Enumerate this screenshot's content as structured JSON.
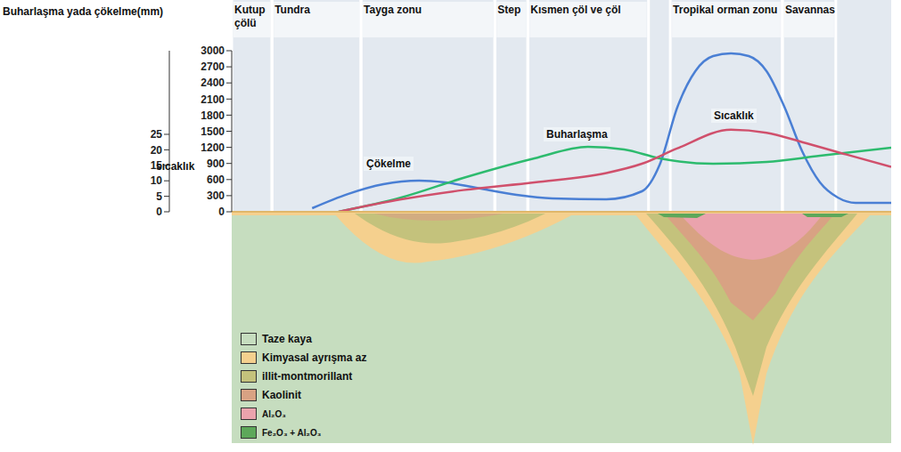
{
  "chart_data": {
    "type": "line",
    "tick_labels": "y",
    "y_label": "Buharlaşma yada çökelme(mm)",
    "y2_label": "sıcaklık",
    "xlim": [
      0,
      100
    ],
    "ylim": [
      0,
      3000
    ],
    "yticks": [
      0,
      300,
      600,
      900,
      1200,
      1500,
      1800,
      2100,
      2400,
      2700,
      3000
    ],
    "y2lim": [
      0,
      52
    ],
    "y2ticks": [
      0,
      5,
      10,
      15,
      20,
      25
    ],
    "zones": [
      {
        "name": "Kutup çölü",
        "start": 0,
        "end": 6.1
      },
      {
        "name": "Tundra",
        "start": 6.1,
        "end": 19.6
      },
      {
        "name": "Tayga zonu",
        "start": 19.6,
        "end": 39.9
      },
      {
        "name": "Step",
        "start": 39.9,
        "end": 44.9
      },
      {
        "name": "Kısmen çöl ve çöl",
        "start": 44.9,
        "end": 63.2
      },
      {
        "name": "Tropikal orman zonu",
        "start": 66.5,
        "end": 83.5
      },
      {
        "name": "Savannas",
        "start": 83.5,
        "end": 91.6
      }
    ],
    "series": [
      {
        "name": "Çökelme",
        "color": "#4a7fd4",
        "x": [
          12.2,
          17.6,
          23,
          28.4,
          32.4,
          37.8,
          43.2,
          48.6,
          56.8,
          62.2,
          64.9,
          67.6,
          70.3,
          73,
          75.7,
          78.4,
          81.1,
          83.8,
          86.5,
          89.2,
          91.9,
          94.6,
          100
        ],
        "values": [
          66,
          330,
          514,
          580,
          547,
          431,
          315,
          249,
          232,
          381,
          878,
          1956,
          2619,
          2900,
          2950,
          2900,
          2619,
          1956,
          1127,
          547,
          265,
          166,
          166
        ]
      },
      {
        "name": "Buharlaşma",
        "color": "#2dbb6e",
        "x": [
          16.2,
          25.7,
          35.1,
          45.9,
          54,
          59.5,
          64.9,
          73,
          81.1,
          89.2,
          100
        ],
        "values": [
          0,
          265,
          630,
          995,
          1210,
          1160,
          995,
          895,
          928,
          1044,
          1193
        ]
      },
      {
        "name": "Sıcaklık",
        "color": "#d0506c",
        "axis": "y2",
        "x": [
          16.2,
          25.7,
          35.1,
          45.9,
          56.8,
          62.2,
          67.6,
          75.7,
          81.1,
          86.5,
          93.2,
          100
        ],
        "values": [
          0,
          4,
          7,
          9.5,
          12.5,
          15.5,
          20.5,
          26.5,
          25.5,
          22.5,
          18.5,
          14.5
        ]
      }
    ],
    "profile_legend": [
      {
        "name": "Taze kaya",
        "color": "#c6ddbf"
      },
      {
        "name": "Kimyasal ayrışma az",
        "color": "#f5d08e"
      },
      {
        "name": "illit-montmorillant",
        "color": "#c4c27c"
      },
      {
        "name": "Kaolinit",
        "color": "#d8a283"
      },
      {
        "name": "Al₂O₃",
        "color": "#eaa3ad"
      },
      {
        "name": "Fe₂O₃ + Al₂O₃",
        "color": "#5da85a"
      }
    ]
  }
}
